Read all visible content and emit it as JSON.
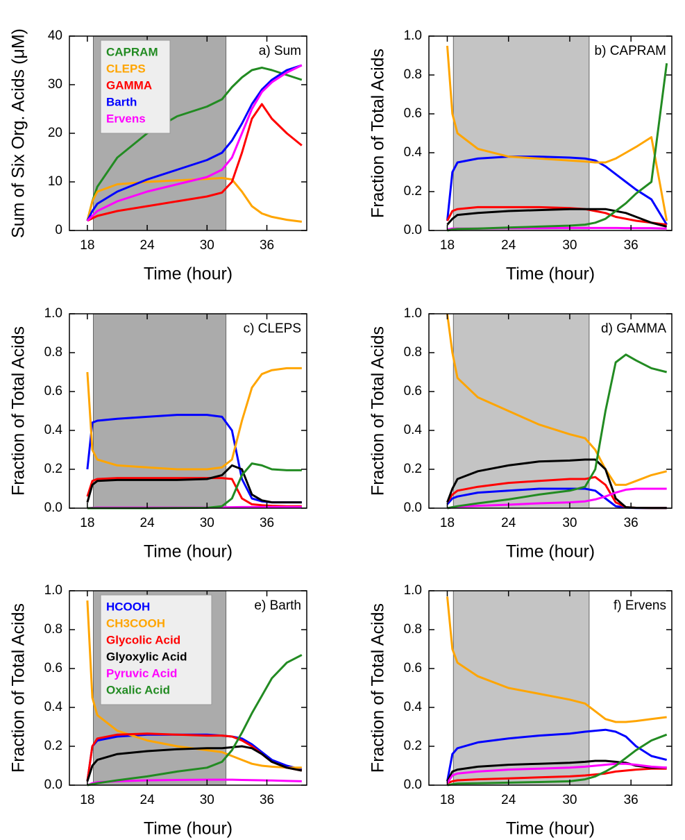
{
  "chart_data": [
    {
      "type": "line",
      "title": "a) Sum",
      "xlabel": "Time (hour)",
      "ylabel": "Sum of Six Org. Acids (μM)",
      "x": [
        18,
        18.5,
        19,
        21,
        24,
        27,
        30,
        31.5,
        32.5,
        33.5,
        34.5,
        35.5,
        36.5,
        38,
        39.5
      ],
      "xlim": [
        16.2,
        40
      ],
      "xticks": [
        18,
        24,
        30,
        36
      ],
      "ylim": [
        0,
        40
      ],
      "yticks": [
        0,
        10,
        20,
        30,
        40
      ],
      "shaded_x": [
        18.6,
        31.9
      ],
      "legend": "upper left",
      "series": [
        {
          "name": "CAPRAM",
          "color": "#228b22",
          "values": [
            2,
            6,
            9,
            15,
            20,
            23.5,
            25.5,
            27,
            29.5,
            31.5,
            33,
            33.5,
            33,
            32,
            31
          ]
        },
        {
          "name": "CLEPS",
          "color": "#ffa500",
          "values": [
            2,
            6,
            8,
            9.5,
            10,
            10.3,
            10.6,
            10.8,
            10.5,
            8,
            5,
            3.5,
            2.8,
            2.2,
            1.8
          ]
        },
        {
          "name": "GAMMA",
          "color": "#ff0000",
          "values": [
            2,
            2.5,
            3,
            4,
            5,
            6,
            7,
            7.8,
            10,
            16,
            23,
            26,
            23,
            20,
            17.5
          ]
        },
        {
          "name": "Barth",
          "color": "#0000ff",
          "values": [
            2,
            4,
            5.5,
            8,
            10.5,
            12.5,
            14.5,
            16,
            18.5,
            22,
            26,
            29,
            31,
            33,
            34
          ]
        },
        {
          "name": "Ervens",
          "color": "#ff00ff",
          "values": [
            2,
            3,
            4,
            6,
            8,
            9.5,
            11,
            12.5,
            15,
            20,
            25,
            28.5,
            30.5,
            32.5,
            34
          ]
        }
      ]
    },
    {
      "type": "line",
      "title": "b) CAPRAM",
      "xlabel": "Time (hour)",
      "ylabel": "Fraction of Total Acids",
      "x": [
        18,
        18.5,
        19,
        21,
        24,
        27,
        30,
        31.5,
        32.5,
        33.5,
        34.5,
        35.5,
        36.5,
        38,
        39.5
      ],
      "xlim": [
        16.2,
        40
      ],
      "xticks": [
        18,
        24,
        30,
        36
      ],
      "ylim": [
        0,
        1
      ],
      "yticks": [
        {
          "value": 0,
          "label": "0.0"
        },
        0.2,
        0.4,
        0.6,
        0.8,
        {
          "value": 1,
          "label": "1.0"
        }
      ],
      "shaded_x": [
        18.6,
        31.9
      ],
      "series": [
        {
          "color": "#0000ff",
          "values": [
            0.05,
            0.3,
            0.35,
            0.37,
            0.38,
            0.38,
            0.375,
            0.37,
            0.36,
            0.33,
            0.29,
            0.25,
            0.21,
            0.16,
            0.03
          ]
        },
        {
          "color": "#ffa500",
          "values": [
            0.95,
            0.6,
            0.5,
            0.42,
            0.38,
            0.37,
            0.36,
            0.355,
            0.35,
            0.35,
            0.37,
            0.4,
            0.43,
            0.48,
            0.05
          ]
        },
        {
          "color": "#ff0000",
          "values": [
            0.05,
            0.1,
            0.11,
            0.12,
            0.12,
            0.12,
            0.115,
            0.11,
            0.1,
            0.09,
            0.07,
            0.06,
            0.05,
            0.04,
            0.03
          ]
        },
        {
          "color": "#000000",
          "values": [
            0.03,
            0.06,
            0.08,
            0.09,
            0.1,
            0.105,
            0.11,
            0.11,
            0.11,
            0.11,
            0.1,
            0.09,
            0.07,
            0.04,
            0.02
          ]
        },
        {
          "color": "#ff00ff",
          "values": [
            0.005,
            0.01,
            0.01,
            0.01,
            0.012,
            0.012,
            0.013,
            0.013,
            0.013,
            0.013,
            0.013,
            0.012,
            0.012,
            0.012,
            0.01
          ]
        },
        {
          "color": "#228b22",
          "values": [
            0,
            0.005,
            0.008,
            0.01,
            0.015,
            0.02,
            0.025,
            0.03,
            0.04,
            0.06,
            0.1,
            0.14,
            0.19,
            0.25,
            0.86
          ]
        }
      ]
    },
    {
      "type": "line",
      "title": "c) CLEPS",
      "xlabel": "Time (hour)",
      "ylabel": "Fraction of Total Acids",
      "x": [
        18,
        18.5,
        19,
        21,
        24,
        27,
        30,
        31.5,
        32.5,
        33.5,
        34.5,
        35.5,
        36.5,
        38,
        39.5
      ],
      "xlim": [
        16.2,
        40
      ],
      "xticks": [
        18,
        24,
        30,
        36
      ],
      "ylim": [
        0,
        1
      ],
      "yticks": [
        {
          "value": 0,
          "label": "0.0"
        },
        0.2,
        0.4,
        0.6,
        0.8,
        {
          "value": 1,
          "label": "1.0"
        }
      ],
      "shaded_x": [
        18.6,
        31.9
      ],
      "series": [
        {
          "color": "#0000ff",
          "values": [
            0.2,
            0.44,
            0.45,
            0.46,
            0.47,
            0.48,
            0.48,
            0.47,
            0.4,
            0.15,
            0.05,
            0.035,
            0.03,
            0.03,
            0.03
          ]
        },
        {
          "color": "#ffa500",
          "values": [
            0.7,
            0.3,
            0.25,
            0.22,
            0.21,
            0.2,
            0.2,
            0.21,
            0.25,
            0.45,
            0.62,
            0.69,
            0.71,
            0.72,
            0.72
          ]
        },
        {
          "color": "#ff0000",
          "values": [
            0.06,
            0.14,
            0.15,
            0.155,
            0.155,
            0.155,
            0.155,
            0.155,
            0.15,
            0.05,
            0.02,
            0.015,
            0.012,
            0.01,
            0.01
          ]
        },
        {
          "color": "#000000",
          "values": [
            0.03,
            0.12,
            0.14,
            0.145,
            0.145,
            0.145,
            0.15,
            0.17,
            0.22,
            0.2,
            0.07,
            0.04,
            0.03,
            0.03,
            0.03
          ]
        },
        {
          "color": "#ff00ff",
          "values": [
            0,
            0.002,
            0.003,
            0.003,
            0.003,
            0.003,
            0.003,
            0.004,
            0.005,
            0.006,
            0.006,
            0.006,
            0.006,
            0.006,
            0.006
          ]
        },
        {
          "color": "#228b22",
          "values": [
            0,
            0,
            0,
            0,
            0,
            0.001,
            0.002,
            0.01,
            0.05,
            0.17,
            0.23,
            0.22,
            0.2,
            0.195,
            0.195
          ]
        }
      ]
    },
    {
      "type": "line",
      "title": "d) GAMMA",
      "xlabel": "Time (hour)",
      "ylabel": "Fraction of Total Acids",
      "x": [
        18,
        18.5,
        19,
        21,
        24,
        27,
        30,
        31.5,
        32.5,
        33.5,
        34.5,
        35.5,
        36.5,
        38,
        39.5
      ],
      "xlim": [
        16.2,
        40
      ],
      "xticks": [
        18,
        24,
        30,
        36
      ],
      "ylim": [
        0,
        1
      ],
      "yticks": [
        {
          "value": 0,
          "label": "0.0"
        },
        0.2,
        0.4,
        0.6,
        0.8,
        {
          "value": 1,
          "label": "1.0"
        }
      ],
      "shaded_x": [
        18.6,
        31.9
      ],
      "series": [
        {
          "color": "#0000ff",
          "values": [
            0.02,
            0.05,
            0.06,
            0.08,
            0.09,
            0.1,
            0.1,
            0.1,
            0.09,
            0.05,
            0.01,
            0.003,
            0.001,
            0.001,
            0.001
          ]
        },
        {
          "color": "#ffa500",
          "values": [
            1.0,
            0.8,
            0.67,
            0.57,
            0.5,
            0.43,
            0.38,
            0.36,
            0.3,
            0.2,
            0.12,
            0.12,
            0.14,
            0.17,
            0.19
          ]
        },
        {
          "color": "#ff0000",
          "values": [
            0.03,
            0.07,
            0.09,
            0.11,
            0.13,
            0.14,
            0.15,
            0.15,
            0.16,
            0.12,
            0.03,
            0.005,
            0.002,
            0.001,
            0.001
          ]
        },
        {
          "color": "#000000",
          "values": [
            0.03,
            0.1,
            0.15,
            0.19,
            0.22,
            0.24,
            0.245,
            0.25,
            0.25,
            0.2,
            0.05,
            0.005,
            0.002,
            0.001,
            0.001
          ]
        },
        {
          "color": "#ff00ff",
          "values": [
            0,
            0.005,
            0.008,
            0.012,
            0.018,
            0.025,
            0.03,
            0.035,
            0.045,
            0.06,
            0.08,
            0.095,
            0.1,
            0.1,
            0.1
          ]
        },
        {
          "color": "#228b22",
          "values": [
            0,
            0.005,
            0.01,
            0.025,
            0.045,
            0.07,
            0.09,
            0.11,
            0.2,
            0.5,
            0.75,
            0.79,
            0.76,
            0.72,
            0.7
          ]
        }
      ]
    },
    {
      "type": "line",
      "title": "e) Barth",
      "xlabel": "Time (hour)",
      "ylabel": "Fraction of Total Acids",
      "x": [
        18,
        18.5,
        19,
        21,
        24,
        27,
        30,
        31.5,
        32.5,
        33.5,
        34.5,
        35.5,
        36.5,
        38,
        39.5
      ],
      "xlim": [
        16.2,
        40
      ],
      "xticks": [
        18,
        24,
        30,
        36
      ],
      "ylim": [
        0,
        1
      ],
      "yticks": [
        {
          "value": 0,
          "label": "0.0"
        },
        0.2,
        0.4,
        0.6,
        0.8,
        {
          "value": 1,
          "label": "1.0"
        }
      ],
      "shaded_x": [
        18.6,
        31.9
      ],
      "legend": "upper left",
      "series": [
        {
          "name": "HCOOH",
          "color": "#0000ff",
          "values": [
            0.02,
            0.2,
            0.23,
            0.25,
            0.26,
            0.26,
            0.26,
            0.255,
            0.25,
            0.24,
            0.21,
            0.17,
            0.13,
            0.1,
            0.08
          ]
        },
        {
          "name": "CH3COOH",
          "color": "#ffa500",
          "values": [
            0.95,
            0.45,
            0.36,
            0.28,
            0.23,
            0.2,
            0.18,
            0.17,
            0.15,
            0.13,
            0.11,
            0.1,
            0.095,
            0.09,
            0.09
          ]
        },
        {
          "name": "Glycolic Acid",
          "color": "#ff0000",
          "values": [
            0.02,
            0.2,
            0.24,
            0.26,
            0.265,
            0.26,
            0.255,
            0.255,
            0.25,
            0.23,
            0.2,
            0.16,
            0.12,
            0.09,
            0.075
          ]
        },
        {
          "name": "Glyoxylic Acid",
          "color": "#000000",
          "values": [
            0.02,
            0.1,
            0.13,
            0.16,
            0.175,
            0.185,
            0.19,
            0.19,
            0.195,
            0.2,
            0.19,
            0.16,
            0.12,
            0.09,
            0.075
          ]
        },
        {
          "name": "Pyruvic Acid",
          "color": "#ff00ff",
          "values": [
            0,
            0.01,
            0.015,
            0.02,
            0.025,
            0.027,
            0.028,
            0.028,
            0.028,
            0.027,
            0.026,
            0.025,
            0.024,
            0.022,
            0.02
          ]
        },
        {
          "name": "Oxalic Acid",
          "color": "#228b22",
          "values": [
            0,
            0.005,
            0.01,
            0.025,
            0.045,
            0.07,
            0.09,
            0.12,
            0.18,
            0.27,
            0.37,
            0.46,
            0.55,
            0.63,
            0.67
          ]
        }
      ]
    },
    {
      "type": "line",
      "title": "f) Ervens",
      "xlabel": "Time (hour)",
      "ylabel": "Fraction of Total Acids",
      "x": [
        18,
        18.5,
        19,
        21,
        24,
        27,
        30,
        31.5,
        32.5,
        33.5,
        34.5,
        35.5,
        36.5,
        38,
        39.5
      ],
      "xlim": [
        16.2,
        40
      ],
      "xticks": [
        18,
        24,
        30,
        36
      ],
      "ylim": [
        0,
        1
      ],
      "yticks": [
        {
          "value": 0,
          "label": "0.0"
        },
        0.2,
        0.4,
        0.6,
        0.8,
        {
          "value": 1,
          "label": "1.0"
        }
      ],
      "shaded_x": [
        18.6,
        31.9
      ],
      "series": [
        {
          "color": "#0000ff",
          "values": [
            0.02,
            0.16,
            0.19,
            0.22,
            0.24,
            0.255,
            0.265,
            0.275,
            0.28,
            0.285,
            0.275,
            0.25,
            0.2,
            0.15,
            0.13
          ]
        },
        {
          "color": "#ffa500",
          "values": [
            0.97,
            0.7,
            0.63,
            0.56,
            0.5,
            0.47,
            0.44,
            0.42,
            0.38,
            0.34,
            0.325,
            0.325,
            0.33,
            0.34,
            0.35
          ]
        },
        {
          "color": "#ff0000",
          "values": [
            0.01,
            0.02,
            0.025,
            0.03,
            0.035,
            0.04,
            0.045,
            0.05,
            0.055,
            0.06,
            0.07,
            0.075,
            0.08,
            0.085,
            0.085
          ]
        },
        {
          "color": "#000000",
          "values": [
            0.02,
            0.07,
            0.08,
            0.095,
            0.105,
            0.11,
            0.115,
            0.12,
            0.125,
            0.125,
            0.12,
            0.115,
            0.1,
            0.09,
            0.09
          ]
        },
        {
          "color": "#ff00ff",
          "values": [
            0.01,
            0.05,
            0.06,
            0.07,
            0.08,
            0.085,
            0.09,
            0.095,
            0.1,
            0.105,
            0.11,
            0.11,
            0.105,
            0.095,
            0.09
          ]
        },
        {
          "color": "#228b22",
          "values": [
            0,
            0.005,
            0.008,
            0.01,
            0.013,
            0.016,
            0.02,
            0.03,
            0.045,
            0.07,
            0.1,
            0.14,
            0.18,
            0.23,
            0.26
          ]
        }
      ]
    }
  ]
}
